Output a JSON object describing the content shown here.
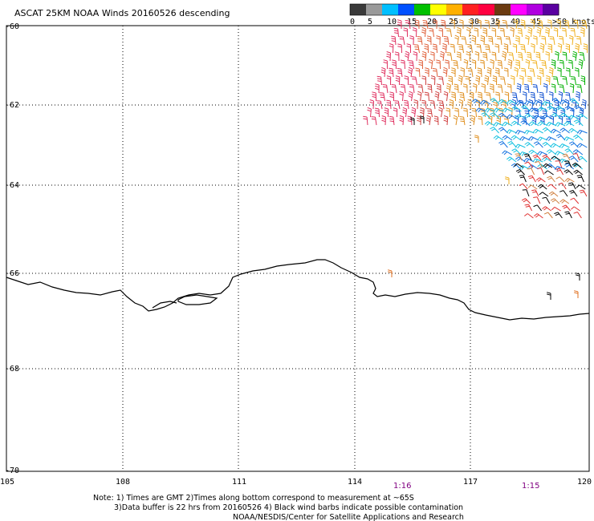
{
  "title": "ASCAT 25KM NOAA Winds 20160526 descending",
  "legend": {
    "labels": [
      "0",
      "5",
      "10",
      "15",
      "20",
      "25",
      "30",
      "35",
      "40",
      "45",
      ">50 knots"
    ],
    "colors": [
      "#3a3a3a",
      "#9a9a9a",
      "#00bfff",
      "#0050ff",
      "#00c000",
      "#ffff00",
      "#ffb000",
      "#ff2020",
      "#ff0040",
      "#6b3a10",
      "#ff00ff",
      "#b000e0",
      "#5a00a0"
    ]
  },
  "lat_labels": [
    "-60",
    "-62",
    "-64",
    "-66",
    "-68",
    "-70"
  ],
  "lon_labels": [
    "105",
    "108",
    "111",
    "114",
    "117",
    "120"
  ],
  "time_labels": [
    "1:16",
    "1:15"
  ],
  "time_color": "#800080",
  "notes": {
    "line1": "Note: 1) Times are GMT 2)Times along bottom correspond to measurement at ~65S",
    "line2": "3)Data buffer is 22 hrs from 20160526 4) Black wind barbs indicate possible contamination",
    "line3": "NOAA/NESDIS/Center for Satellite Applications and Research"
  }
}
